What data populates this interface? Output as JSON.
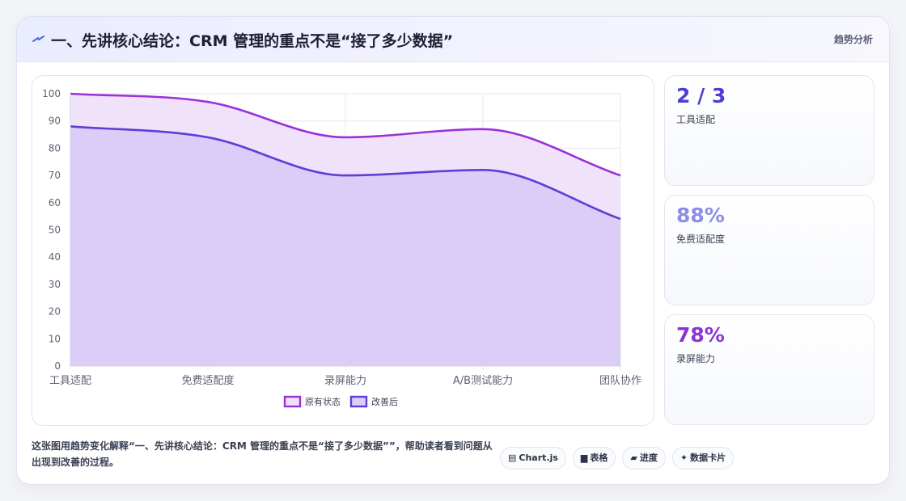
{
  "header": {
    "title": "一、先讲核心结论：CRM 管理的重点不是“接了多少数据”",
    "tag": "趋势分析"
  },
  "colors": {
    "series_original": "#9b30d9",
    "series_improved": "#5b3fd6",
    "fill_original": "#f1e2fb",
    "fill_improved": "#dccdf8"
  },
  "chart_data": {
    "type": "area",
    "categories": [
      "工具适配",
      "免费适配度",
      "录屏能力",
      "A/B测试能力",
      "团队协作"
    ],
    "series": [
      {
        "name": "原有状态",
        "values": [
          100,
          97,
          84,
          87,
          70
        ]
      },
      {
        "name": "改善后",
        "values": [
          88,
          84,
          70,
          72,
          54
        ]
      }
    ],
    "ylim": [
      0,
      100
    ],
    "yticks": [
      0,
      10,
      20,
      30,
      40,
      50,
      60,
      70,
      80,
      90,
      100
    ],
    "grid": true,
    "legend": "bottom"
  },
  "stats": [
    {
      "value": "2 / 3",
      "label": "工具适配",
      "color": "#4b3fd0"
    },
    {
      "value": "88%",
      "label": "免费适配度",
      "color": "#8a8ee6"
    },
    {
      "value": "78%",
      "label": "录屏能力",
      "color": "#8a34d6"
    }
  ],
  "footer": {
    "text": "这张图用趋势变化解释“一、先讲核心结论：CRM 管理的重点不是“接了多少数据””，帮助读者看到问题从出现到改善的过程。"
  },
  "chips": [
    {
      "icon": "▤",
      "label": "Chart.js"
    },
    {
      "icon": "▆",
      "label": "表格"
    },
    {
      "icon": "▰",
      "label": "进度"
    },
    {
      "icon": "✦",
      "label": "数据卡片"
    }
  ]
}
